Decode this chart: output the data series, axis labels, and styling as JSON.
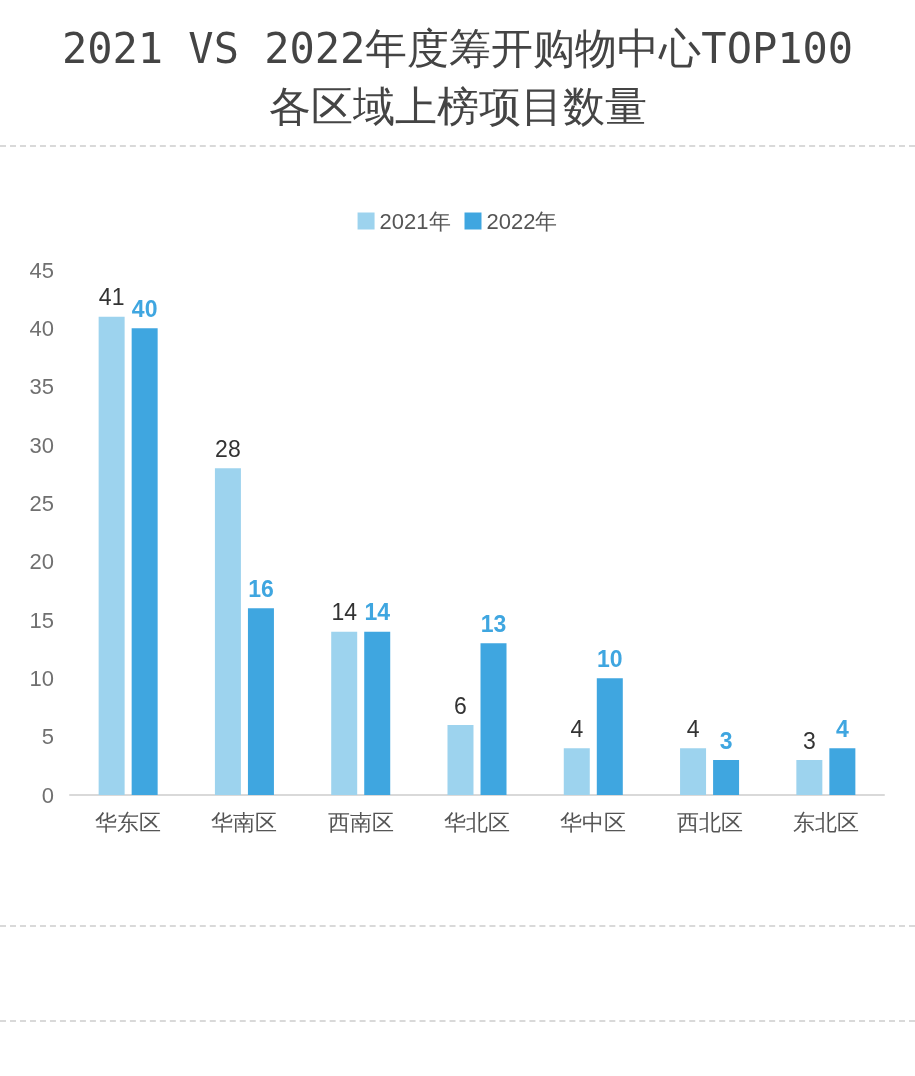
{
  "chart_data": {
    "type": "bar",
    "title": "2021 VS 2022年度筹开购物中心TOP100各区域上榜项目数量",
    "categories": [
      "华东区",
      "华南区",
      "西南区",
      "华北区",
      "华中区",
      "西北区",
      "东北区"
    ],
    "series": [
      {
        "name": "2021年",
        "color": "#9dd3ee",
        "values": [
          41,
          28,
          14,
          6,
          4,
          4,
          3
        ]
      },
      {
        "name": "2022年",
        "color": "#3fa6e0",
        "values": [
          40,
          16,
          14,
          13,
          10,
          3,
          4
        ]
      }
    ],
    "ylim": [
      0,
      45
    ],
    "yticks": [
      0,
      5,
      10,
      15,
      20,
      25,
      30,
      35,
      40,
      45
    ],
    "grid": false,
    "legend": "top",
    "data_labels": true
  }
}
